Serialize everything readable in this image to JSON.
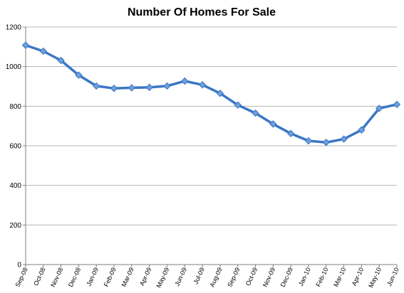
{
  "chart_data": {
    "type": "line",
    "title": "Number Of Homes For Sale",
    "xlabel": "",
    "ylabel": "",
    "ylim": [
      0,
      1200
    ],
    "yticks": [
      0,
      200,
      400,
      600,
      800,
      1000,
      1200
    ],
    "grid": true,
    "legend": "none",
    "categories": [
      "Sep-08",
      "Oct-08",
      "Nov-08",
      "Dec-08",
      "Jan-09",
      "Feb-09",
      "Mar-09",
      "Apr-09",
      "May-09",
      "Jun-09",
      "Jul-09",
      "Aug-09",
      "Sep-09",
      "Oct-09",
      "Nov-09",
      "Dec-09",
      "Jan-10",
      "Feb-10",
      "Mar-10",
      "Apr-10",
      "May-10",
      "Jun-10"
    ],
    "series": [
      {
        "color": "#3a76c4",
        "marker_color": "#6f9fdc",
        "values": [
          1108,
          1078,
          1031,
          957,
          902,
          890,
          893,
          895,
          902,
          927,
          908,
          865,
          806,
          765,
          710,
          662,
          625,
          617,
          634,
          680,
          789,
          809
        ]
      }
    ]
  }
}
